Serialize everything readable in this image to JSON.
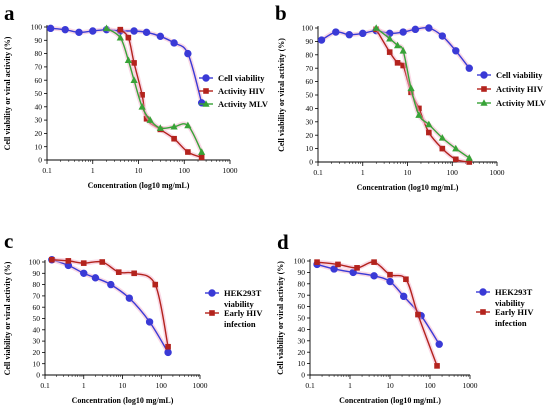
{
  "chart_data": [
    {
      "panel": "a",
      "type": "line",
      "xscale": "log",
      "xlim": [
        0.1,
        1000
      ],
      "ylim": [
        0,
        100
      ],
      "xticks": [
        "0.1",
        "1",
        "10",
        "100",
        "1000"
      ],
      "yticks": [
        "0",
        "10",
        "20",
        "30",
        "40",
        "50",
        "60",
        "70",
        "80",
        "90",
        "100"
      ],
      "xlabel": "Concentration (log10 mg/mL)",
      "ylabel": "Cell viability or viral activity (%)",
      "legend_position": "right",
      "series": [
        {
          "name": "Cell viability",
          "color": "#3a3ad6",
          "marker": "circle",
          "x": [
            0.12,
            0.25,
            0.5,
            1,
            2,
            4,
            8,
            15,
            30,
            60,
            120,
            240
          ],
          "y": [
            99,
            98,
            96,
            97,
            98,
            97,
            97,
            96,
            93,
            88,
            80,
            43
          ]
        },
        {
          "name": "Activity HIV",
          "color": "#b3231d",
          "marker": "square",
          "x": [
            4,
            6,
            8,
            12,
            15,
            30,
            60,
            120,
            240
          ],
          "y": [
            98,
            92,
            73,
            49,
            31,
            23,
            16,
            6,
            2
          ]
        },
        {
          "name": "Activity MLV",
          "color": "#37a337",
          "marker": "triangle",
          "x": [
            2,
            4,
            6,
            8,
            12,
            18,
            30,
            60,
            120,
            240
          ],
          "y": [
            99,
            92,
            75,
            60,
            40,
            30,
            24,
            25,
            26,
            6
          ]
        }
      ]
    },
    {
      "panel": "b",
      "type": "line",
      "xscale": "log",
      "xlim": [
        0.1,
        1000
      ],
      "ylim": [
        0,
        100
      ],
      "xticks": [
        "0.1",
        "1",
        "10",
        "100",
        "1000"
      ],
      "yticks": [
        "0",
        "10",
        "20",
        "30",
        "40",
        "50",
        "60",
        "70",
        "80",
        "90",
        "100"
      ],
      "xlabel": "Concentration (log10 mg/mL)",
      "ylabel": "Cell viability or viral activity (%)",
      "legend_position": "right",
      "series": [
        {
          "name": "Cell viability",
          "color": "#3a3ad6",
          "marker": "circle",
          "x": [
            0.12,
            0.25,
            0.5,
            1,
            2,
            4,
            8,
            15,
            30,
            60,
            120,
            240
          ],
          "y": [
            91,
            97,
            95,
            96,
            98,
            96,
            97,
            99,
            100,
            94,
            83,
            70
          ]
        },
        {
          "name": "Activity HIV",
          "color": "#b3231d",
          "marker": "square",
          "x": [
            2,
            4,
            6,
            8,
            12,
            18,
            30,
            60,
            120,
            240
          ],
          "y": [
            99,
            82,
            74,
            72,
            52,
            40,
            22,
            10,
            2,
            0
          ]
        },
        {
          "name": "Activity MLV",
          "color": "#37a337",
          "marker": "triangle",
          "x": [
            2,
            4,
            6,
            8,
            12,
            18,
            30,
            60,
            120,
            240
          ],
          "y": [
            100,
            92,
            87,
            83,
            55,
            35,
            28,
            18,
            10,
            3
          ]
        }
      ]
    },
    {
      "panel": "c",
      "type": "line",
      "xscale": "log",
      "xlim": [
        0.1,
        1000
      ],
      "ylim": [
        0,
        100
      ],
      "xticks": [
        "0.1",
        "1",
        "10",
        "100",
        "1000"
      ],
      "yticks": [
        "0",
        "10",
        "20",
        "30",
        "40",
        "50",
        "60",
        "70",
        "80",
        "90",
        "100"
      ],
      "xlabel": "Concentration (log10 mg/mL)",
      "ylabel": "Cell viability or viral activity (%)",
      "legend_position": "right",
      "series": [
        {
          "name": "HEK293T viability",
          "color": "#3a3ad6",
          "marker": "circle",
          "x": [
            0.15,
            0.4,
            1,
            2,
            5,
            15,
            50,
            150
          ],
          "y": [
            102,
            97,
            90,
            86,
            80,
            68,
            47,
            20
          ]
        },
        {
          "name": "Early HIV infection",
          "color": "#b3231d",
          "marker": "square",
          "x": [
            0.15,
            0.4,
            1,
            3,
            8,
            20,
            70,
            150
          ],
          "y": [
            102,
            101,
            99,
            100,
            91,
            90,
            80,
            25
          ]
        }
      ]
    },
    {
      "panel": "d",
      "type": "line",
      "xscale": "log",
      "xlim": [
        0.1,
        1000
      ],
      "ylim": [
        0,
        100
      ],
      "xticks": [
        "0.1",
        "1",
        "10",
        "100",
        "1000"
      ],
      "yticks": [
        "0",
        "10",
        "20",
        "30",
        "40",
        "50",
        "60",
        "70",
        "80",
        "90",
        "100"
      ],
      "xlabel": "Concentration (log10 mg/mL)",
      "ylabel": "Cell viability or viral activity (%)",
      "legend_position": "right",
      "series": [
        {
          "name": "HEK293T viability",
          "color": "#3a3ad6",
          "marker": "circle",
          "x": [
            0.15,
            0.4,
            1.2,
            4,
            10,
            22,
            60,
            170
          ],
          "y": [
            97,
            93,
            90,
            87,
            82,
            69,
            52,
            27
          ]
        },
        {
          "name": "Early HIV infection",
          "color": "#b3231d",
          "marker": "square",
          "x": [
            0.15,
            0.5,
            1.5,
            4,
            10,
            25,
            50,
            150
          ],
          "y": [
            99,
            97,
            94,
            99,
            88,
            84,
            53,
            8
          ]
        }
      ]
    }
  ]
}
